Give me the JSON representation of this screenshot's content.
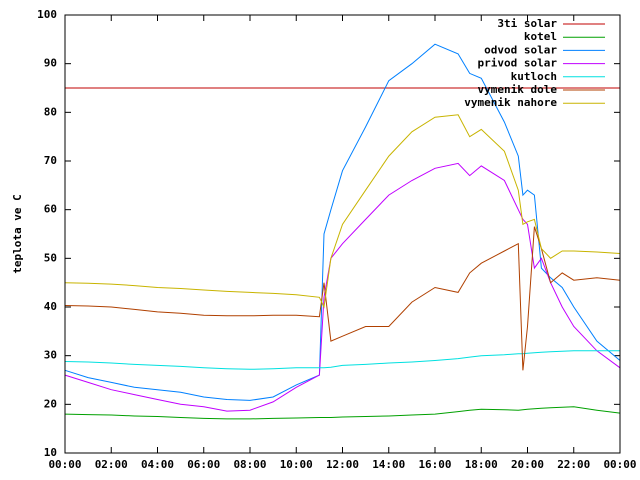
{
  "chart_data": {
    "type": "line",
    "ylabel": "teplota ve C",
    "x": [
      0,
      1,
      2,
      3,
      4,
      5,
      6,
      7,
      8,
      9,
      10,
      11,
      11.2,
      11.5,
      12,
      13,
      14,
      15,
      16,
      17,
      17.5,
      18,
      19,
      19.6,
      19.8,
      20,
      20.3,
      20.6,
      21,
      21.5,
      22,
      23,
      24
    ],
    "xlim": [
      0,
      24
    ],
    "xticks": [
      {
        "value": 0,
        "label": "00:00"
      },
      {
        "value": 2,
        "label": "02:00"
      },
      {
        "value": 4,
        "label": "04:00"
      },
      {
        "value": 6,
        "label": "06:00"
      },
      {
        "value": 8,
        "label": "08:00"
      },
      {
        "value": 10,
        "label": "10:00"
      },
      {
        "value": 12,
        "label": "12:00"
      },
      {
        "value": 14,
        "label": "14:00"
      },
      {
        "value": 16,
        "label": "16:00"
      },
      {
        "value": 18,
        "label": "18:00"
      },
      {
        "value": 20,
        "label": "20:00"
      },
      {
        "value": 22,
        "label": "22:00"
      },
      {
        "value": 24,
        "label": "00:00"
      }
    ],
    "ylim": [
      10,
      100
    ],
    "yticks": [
      10,
      20,
      30,
      40,
      50,
      60,
      70,
      80,
      90,
      100
    ],
    "legend": "top-right",
    "series": [
      {
        "name": "3ti solar",
        "color": "#c00000",
        "values": [
          85,
          85,
          85,
          85,
          85,
          85,
          85,
          85,
          85,
          85,
          85,
          85,
          85,
          85,
          85,
          85,
          85,
          85,
          85,
          85,
          85,
          85,
          85,
          85,
          85,
          85,
          85,
          85,
          85,
          85,
          85,
          85,
          85
        ]
      },
      {
        "name": "kotel",
        "color": "#00a000",
        "values": [
          18,
          17.9,
          17.8,
          17.6,
          17.5,
          17.3,
          17.1,
          17,
          17,
          17.1,
          17.2,
          17.3,
          17.3,
          17.3,
          17.4,
          17.5,
          17.6,
          17.8,
          18,
          18.5,
          18.8,
          19,
          18.9,
          18.8,
          18.9,
          19,
          19.1,
          19.2,
          19.3,
          19.4,
          19.5,
          18.8,
          18.2
        ]
      },
      {
        "name": "odvod solar",
        "color": "#0080ff",
        "values": [
          27,
          25.5,
          24.5,
          23.5,
          23,
          22.5,
          21.5,
          21,
          20.8,
          21.5,
          24,
          26,
          55,
          60,
          68,
          77,
          86.5,
          90,
          94,
          92,
          88,
          87,
          78,
          71,
          63,
          64,
          63,
          48,
          46,
          44,
          40,
          33,
          29
        ]
      },
      {
        "name": "privod solar",
        "color": "#c000ff",
        "values": [
          26,
          24.5,
          23,
          22,
          21,
          20,
          19.5,
          18.6,
          18.8,
          20.5,
          23.5,
          26,
          42,
          50,
          53,
          58,
          63,
          66,
          68.5,
          69.5,
          67,
          69,
          66,
          60,
          58,
          57,
          48,
          50,
          45,
          40,
          36,
          31,
          27.5
        ]
      },
      {
        "name": "kutloch",
        "color": "#00e0e0",
        "values": [
          28.8,
          28.7,
          28.5,
          28.2,
          28,
          27.8,
          27.5,
          27.3,
          27.2,
          27.3,
          27.5,
          27.5,
          27.5,
          27.6,
          28,
          28.2,
          28.5,
          28.7,
          29,
          29.4,
          29.7,
          30,
          30.2,
          30.4,
          30.4,
          30.5,
          30.6,
          30.7,
          30.8,
          30.9,
          31,
          31,
          31
        ]
      },
      {
        "name": "vymenik dole",
        "color": "#b04000",
        "values": [
          40.3,
          40.2,
          40,
          39.5,
          39,
          38.7,
          38.3,
          38.2,
          38.2,
          38.3,
          38.3,
          38,
          45,
          33,
          34,
          36,
          36,
          41,
          44,
          43,
          47,
          49,
          51.5,
          53,
          27,
          36,
          56.5,
          52,
          45,
          47,
          45.5,
          46,
          45.5
        ]
      },
      {
        "name": "vymenik nahore",
        "color": "#c8b400",
        "values": [
          45,
          44.9,
          44.7,
          44.4,
          44,
          43.8,
          43.5,
          43.2,
          43,
          42.8,
          42.5,
          42,
          40,
          50,
          57,
          64,
          71,
          76,
          79,
          79.5,
          75,
          76.5,
          72,
          64,
          57,
          57.5,
          58,
          52,
          50,
          51.5,
          51.5,
          51.3,
          51
        ]
      }
    ]
  }
}
